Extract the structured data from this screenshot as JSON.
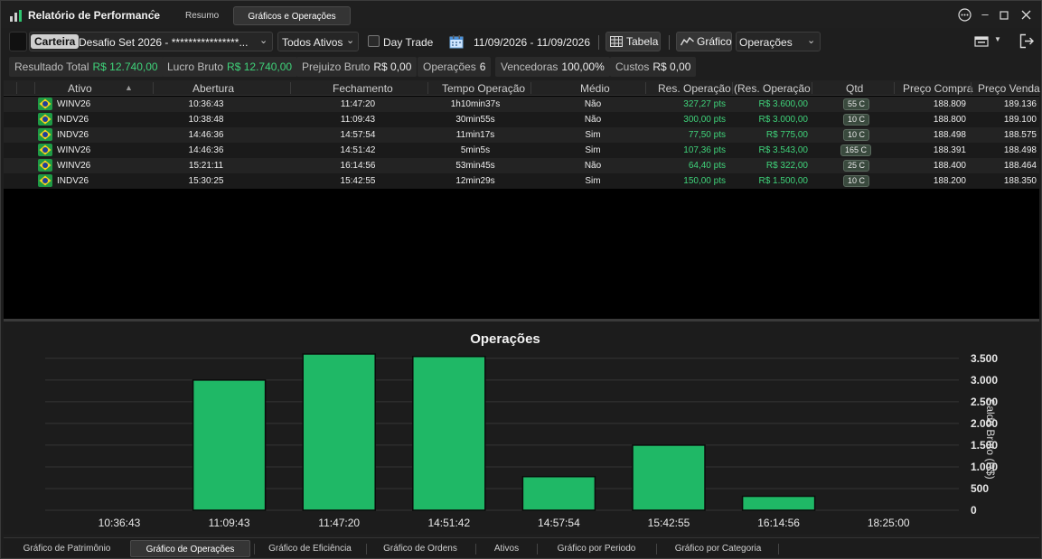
{
  "window": {
    "title": "Relatório de Performance",
    "tabs": [
      {
        "label": "Resumo",
        "active": false
      },
      {
        "label": "Gráficos e Operações",
        "active": true
      }
    ]
  },
  "toolbar": {
    "carteira_label": "Carteira",
    "carteira_name": "Desafio Set 2026 - ****************...",
    "assets_filter": "Todos Ativos",
    "day_trade_label": "Day Trade",
    "day_trade_checked": false,
    "date_range": "11/09/2026 - 11/09/2026",
    "table_button": "Tabela",
    "chart_button": "Gráfico",
    "chart_type": "Operações"
  },
  "summary": [
    {
      "label": "Resultado Total",
      "value": "R$ 12.740,00",
      "color": "#3fd37a"
    },
    {
      "label": "Lucro Bruto",
      "value": "R$ 12.740,00",
      "color": "#3fd37a"
    },
    {
      "label": "Prejuizo Bruto",
      "value": "R$ 0,00",
      "color": "#ececec"
    },
    {
      "label": "Operações",
      "value": "6",
      "color": "#ececec"
    },
    {
      "label": "Vencedoras",
      "value": "100,00%",
      "color": "#ececec"
    },
    {
      "label": "Custos",
      "value": "R$ 0,00",
      "color": "#ececec"
    }
  ],
  "table": {
    "columns": [
      "Ativo",
      "Abertura",
      "Fechamento",
      "Tempo Operação",
      "Médio",
      "Res. Operação (",
      "Res. Operação",
      "Qtd",
      "Preço Compra",
      "Preço Venda"
    ],
    "rows": [
      {
        "ativo": "WINV26",
        "abertura": "10:36:43",
        "fechamento": "11:47:20",
        "tempo": "1h10min37s",
        "medio": "Não",
        "res_pts": "327,27 pts",
        "res_rs": "R$ 3.600,00",
        "qtd": "55 C",
        "compra": "188.809",
        "venda": "189.136"
      },
      {
        "ativo": "INDV26",
        "abertura": "10:38:48",
        "fechamento": "11:09:43",
        "tempo": "30min55s",
        "medio": "Não",
        "res_pts": "300,00 pts",
        "res_rs": "R$ 3.000,00",
        "qtd": "10 C",
        "compra": "188.800",
        "venda": "189.100"
      },
      {
        "ativo": "INDV26",
        "abertura": "14:46:36",
        "fechamento": "14:57:54",
        "tempo": "11min17s",
        "medio": "Sim",
        "res_pts": "77,50 pts",
        "res_rs": "R$ 775,00",
        "qtd": "10 C",
        "compra": "188.498",
        "venda": "188.575"
      },
      {
        "ativo": "WINV26",
        "abertura": "14:46:36",
        "fechamento": "14:51:42",
        "tempo": "5min5s",
        "medio": "Sim",
        "res_pts": "107,36 pts",
        "res_rs": "R$ 3.543,00",
        "qtd": "165 C",
        "compra": "188.391",
        "venda": "188.498"
      },
      {
        "ativo": "WINV26",
        "abertura": "15:21:11",
        "fechamento": "16:14:56",
        "tempo": "53min45s",
        "medio": "Não",
        "res_pts": "64,40 pts",
        "res_rs": "R$ 322,00",
        "qtd": "25 C",
        "compra": "188.400",
        "venda": "188.464"
      },
      {
        "ativo": "INDV26",
        "abertura": "15:30:25",
        "fechamento": "15:42:55",
        "tempo": "12min29s",
        "medio": "Sim",
        "res_pts": "150,00 pts",
        "res_rs": "R$ 1.500,00",
        "qtd": "10 C",
        "compra": "188.200",
        "venda": "188.350"
      }
    ]
  },
  "chart_data": {
    "type": "bar",
    "title": "Operações",
    "ylabel": "Saldo Bruto (R$)",
    "xlabel": "",
    "categories": [
      "10:36:43",
      "11:09:43",
      "11:47:20",
      "14:51:42",
      "14:57:54",
      "15:42:55",
      "16:14:56",
      "18:25:00"
    ],
    "values": [
      null,
      3000,
      3600,
      3543,
      775,
      1500,
      322,
      null
    ],
    "ylim": [
      0,
      3600
    ],
    "yticks": [
      0,
      500,
      1000,
      1500,
      2000,
      2500,
      3000,
      3500
    ],
    "ytick_labels": [
      "0",
      "500",
      "1.000",
      "1.500",
      "2.000",
      "2.500",
      "3.000",
      "3.500"
    ],
    "y_axis_side": "right",
    "grid": true,
    "bar_color": "#1fb866"
  },
  "bottom_tabs": [
    {
      "label": "Gráfico de Patrimônio",
      "active": false
    },
    {
      "label": "Gráfico de Operações",
      "active": true
    },
    {
      "label": "Gráfico de Eficiência",
      "active": false
    },
    {
      "label": "Gráfico de Ordens",
      "active": false
    },
    {
      "label": "Ativos",
      "active": false
    },
    {
      "label": "Gráfico por Periodo",
      "active": false
    },
    {
      "label": "Gráfico por Categoria",
      "active": false
    }
  ]
}
